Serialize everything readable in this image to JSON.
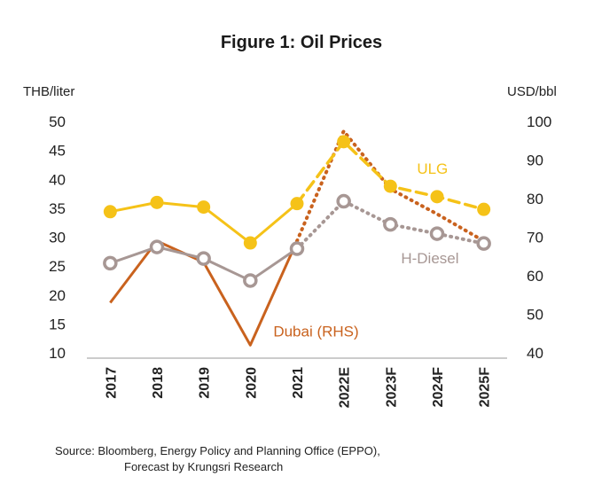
{
  "chart_data": {
    "type": "line",
    "title": "Figure 1: Oil Prices",
    "y_left_label": "THB/liter",
    "y_right_label": "USD/bbl",
    "y_left_range": [
      10,
      50
    ],
    "y_left_ticks": [
      "50",
      "45",
      "40",
      "35",
      "30",
      "25",
      "20",
      "15",
      "10"
    ],
    "y_right_range": [
      40,
      100
    ],
    "y_right_ticks": [
      "100",
      "90",
      "80",
      "70",
      "60",
      "50",
      "40"
    ],
    "categories": [
      "2017",
      "2018",
      "2019",
      "2020",
      "2021",
      "2022E",
      "2023F",
      "2024F",
      "2025F"
    ],
    "actual_count": 5,
    "series": [
      {
        "name": "ULG",
        "axis": "left",
        "color": "#F5C218",
        "marker": "filled-circle",
        "forecast_style": "dashed",
        "values": [
          34.4,
          36.0,
          35.2,
          29.0,
          35.8,
          46.5,
          38.8,
          37.0,
          34.8
        ]
      },
      {
        "name": "H-Diesel",
        "axis": "left",
        "color": "#A79794",
        "marker": "ring",
        "forecast_style": "dotted",
        "values": [
          25.5,
          28.3,
          26.3,
          22.5,
          28.0,
          36.2,
          32.2,
          30.6,
          28.9
        ]
      },
      {
        "name": "Dubai (RHS)",
        "axis": "right",
        "color": "#C9621E",
        "marker": "none",
        "forecast_style": "dotted",
        "values": [
          53.0,
          69.0,
          63.5,
          42.0,
          69.0,
          97.5,
          82.5,
          76.0,
          69.0
        ]
      }
    ],
    "grid": false,
    "legend": "inline labels"
  },
  "source": {
    "line1": "Source: Bloomberg, Energy Policy and Planning Office (EPPO),",
    "line2": "Forecast by  Krungsri Research"
  }
}
